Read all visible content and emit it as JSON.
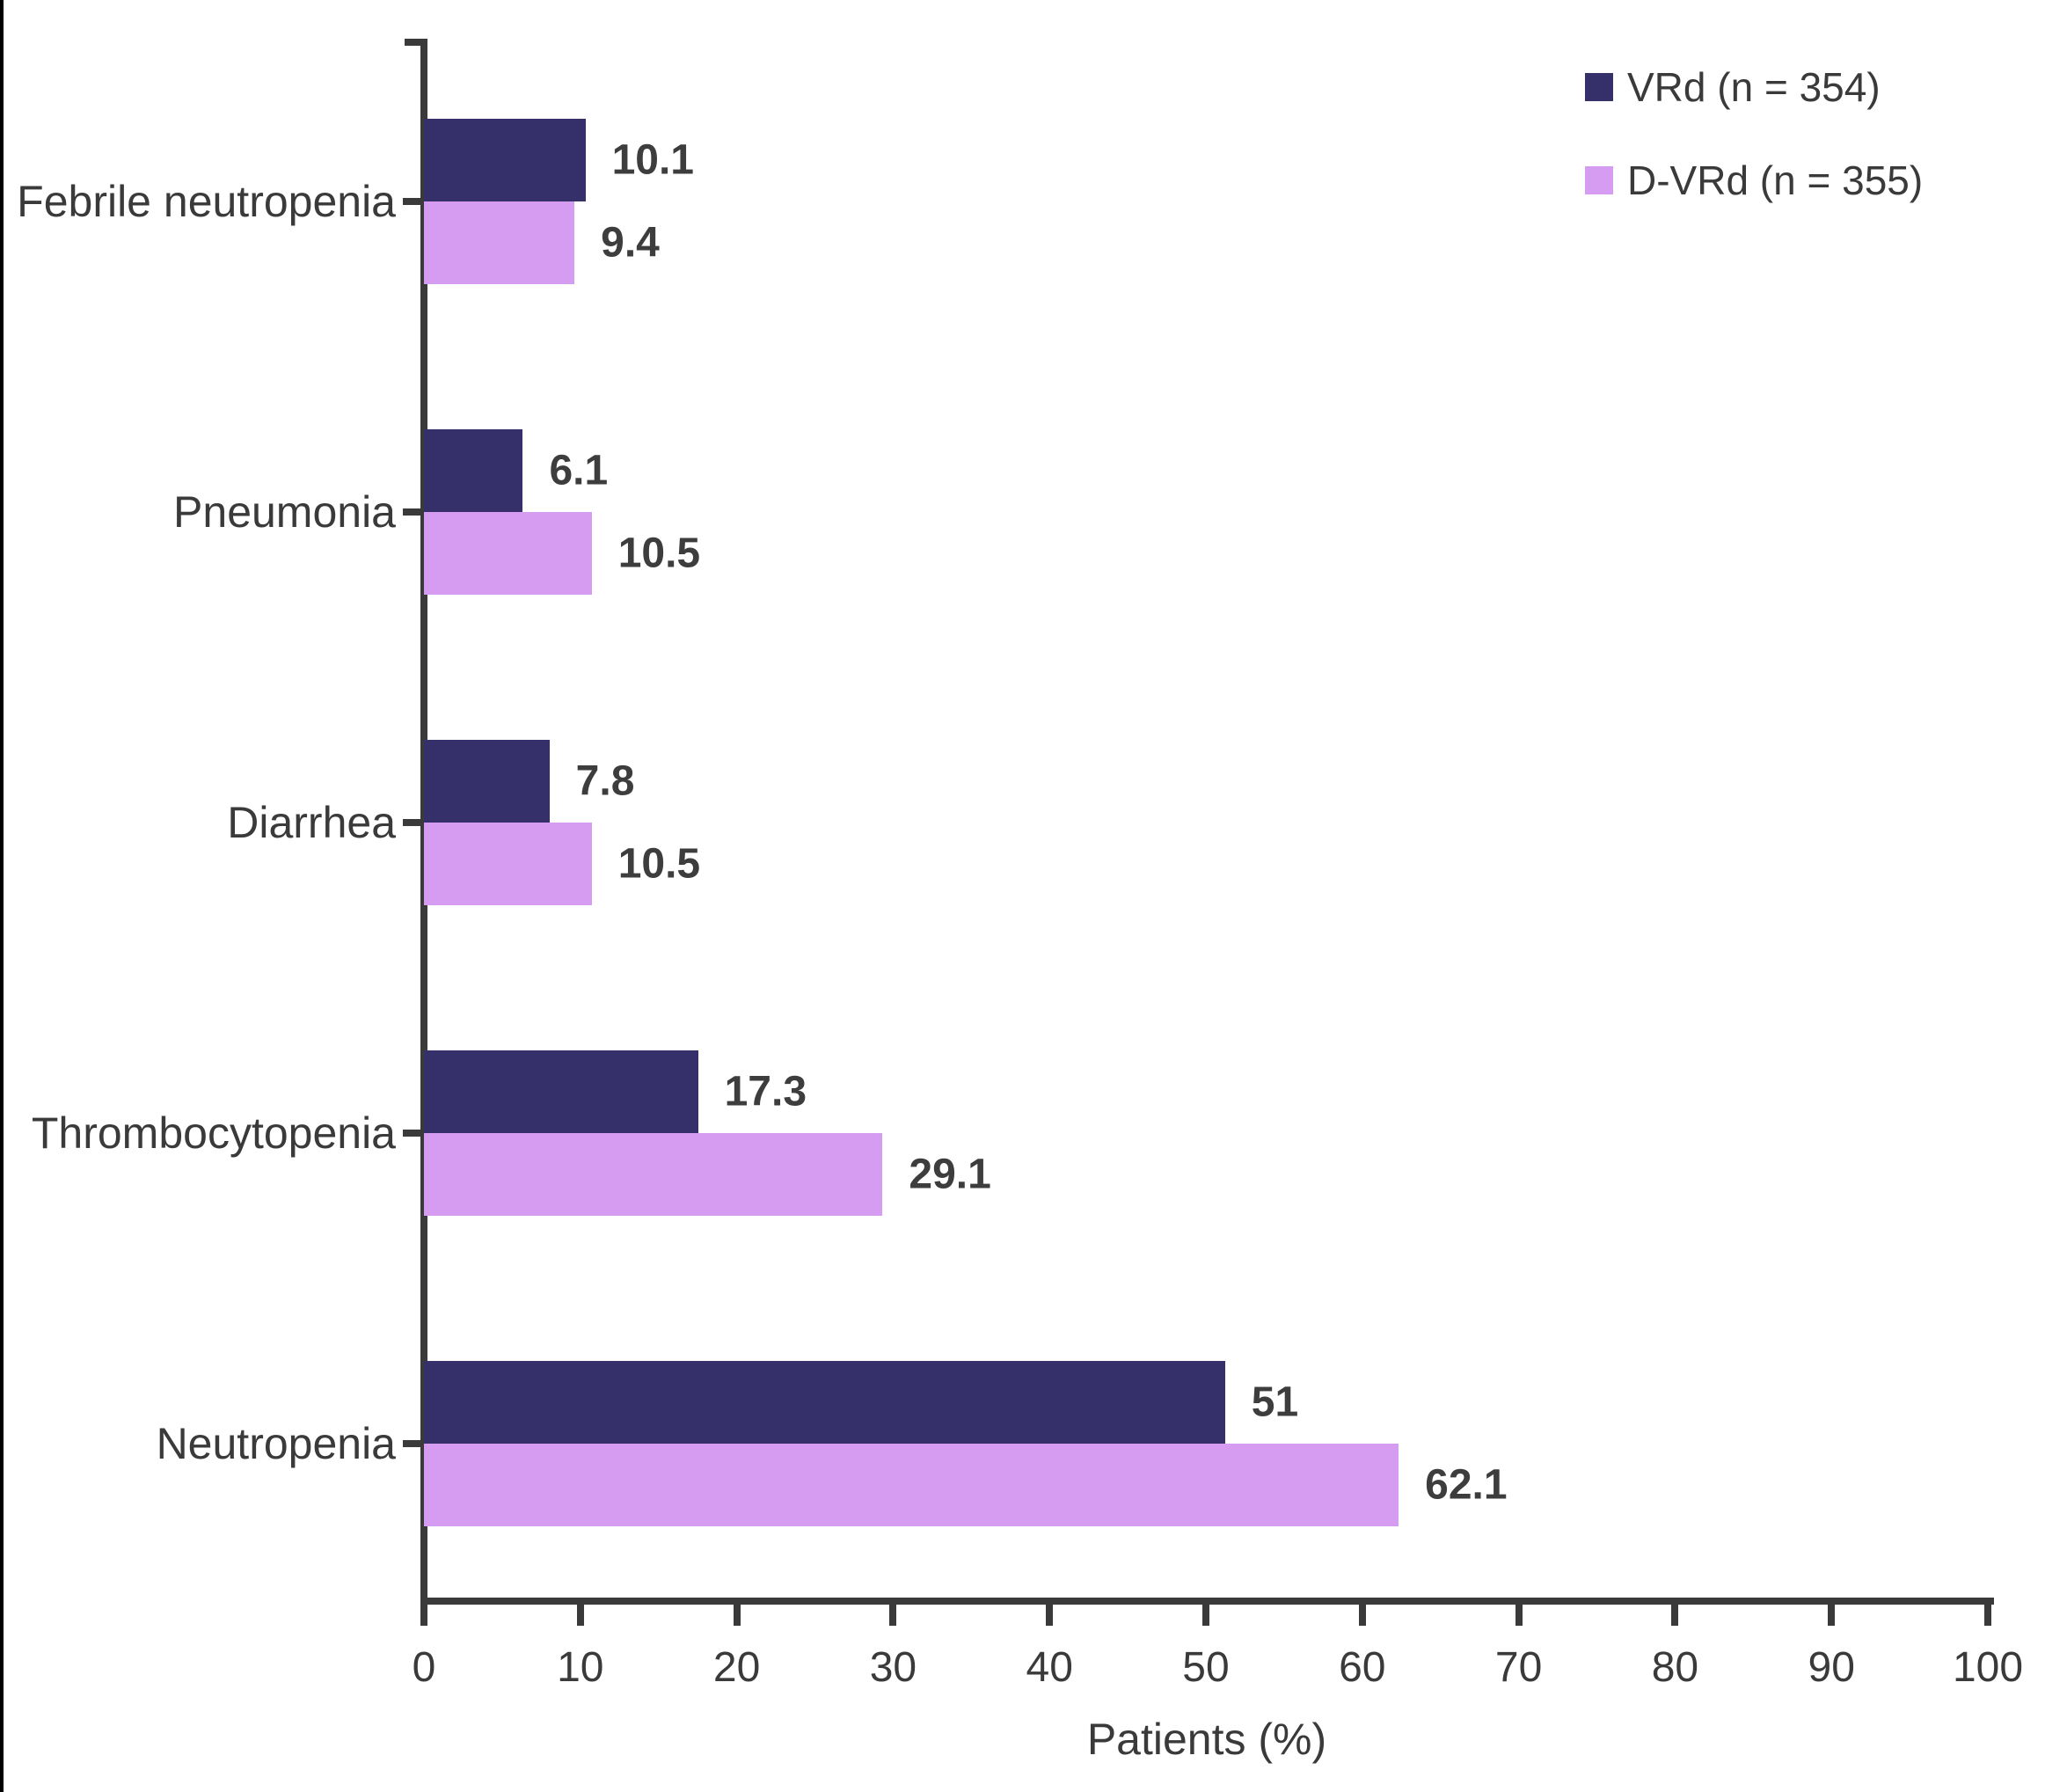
{
  "chart_data": {
    "type": "bar",
    "orientation": "horizontal",
    "xlabel": "Patients (%)",
    "xlim": [
      0,
      100
    ],
    "x_ticks": [
      "0",
      "10",
      "20",
      "30",
      "40",
      "50",
      "60",
      "70",
      "80",
      "90",
      "100"
    ],
    "categories": [
      "Febrile neutropenia",
      "Pneumonia",
      "Diarrhea",
      "Thrombocytopenia",
      "Neutropenia"
    ],
    "series": [
      {
        "name": "VRd (n = 354)",
        "color": "#35306a",
        "values": [
          10.1,
          6.1,
          7.8,
          17.3,
          51
        ],
        "labels": [
          "10.1",
          "6.1",
          "7.8",
          "17.3",
          "51"
        ]
      },
      {
        "name": "D-VRd (n = 355)",
        "color": "#d69cf1",
        "values": [
          9.4,
          10.5,
          10.5,
          29.1,
          62.1
        ],
        "labels": [
          "9.4",
          "10.5",
          "10.5",
          "29.1",
          "62.1"
        ]
      }
    ],
    "legend_position": "top-right",
    "grid": false
  },
  "colors": {
    "axis": "#3a3a3a",
    "text": "#3a3a3a",
    "value_label": "#3d3d3d"
  }
}
